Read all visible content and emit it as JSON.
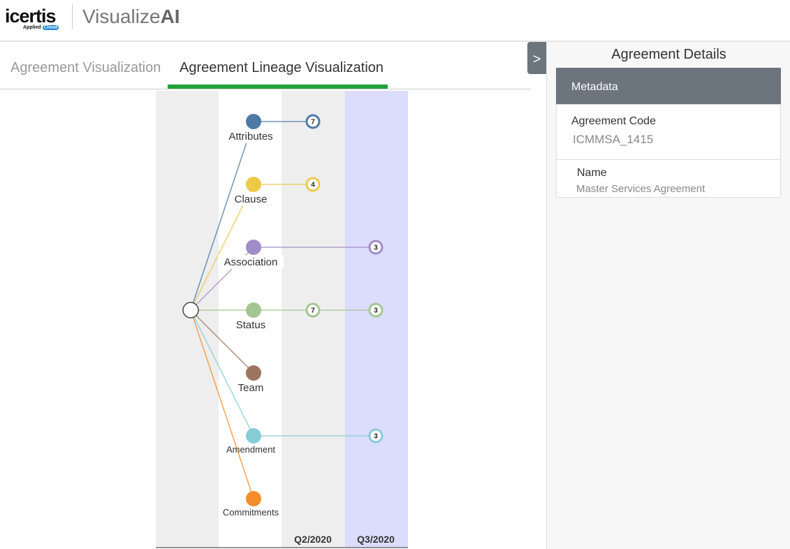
{
  "header": {
    "logo": "icertis",
    "logo_sub_prefix": "Applied",
    "logo_sub_badge": "Cloud",
    "app_title_light": "Visualize",
    "app_title_bold": "AI"
  },
  "tabs": [
    {
      "label": "Agreement Visualization",
      "active": false
    },
    {
      "label": "Agreement Lineage Visualization",
      "active": true
    }
  ],
  "lineage": {
    "columns": [
      "Q2/2020",
      "Q3/2020"
    ],
    "colors": {
      "gray": "#eeeeee",
      "lavender": "#dcdcfc"
    },
    "nodes": [
      {
        "label": "Attributes",
        "color": "#4e79a7",
        "q2": "7",
        "q3": null
      },
      {
        "label": "Clause",
        "color": "#edc948",
        "q2": "4",
        "q3": null
      },
      {
        "label": "Association",
        "color": "#a08cc8",
        "q2": null,
        "q3": "3"
      },
      {
        "label": "Status",
        "color": "#a4c690",
        "q2": "7",
        "q3": "3"
      },
      {
        "label": "Team",
        "color": "#9c755f",
        "q2": null,
        "q3": null
      },
      {
        "label": "Amendment",
        "color": "#86cdd6",
        "q2": null,
        "q3": "3"
      },
      {
        "label": "Commitments",
        "color": "#f28e2b",
        "q2": null,
        "q3": null
      }
    ]
  },
  "panel": {
    "toggle": ">",
    "title": "Agreement Details",
    "section": "Metadata",
    "fields": [
      {
        "label": "Agreement Code",
        "value": "ICMMSA_1415"
      },
      {
        "label": "Name",
        "value": "Master Services Agreement"
      }
    ]
  }
}
